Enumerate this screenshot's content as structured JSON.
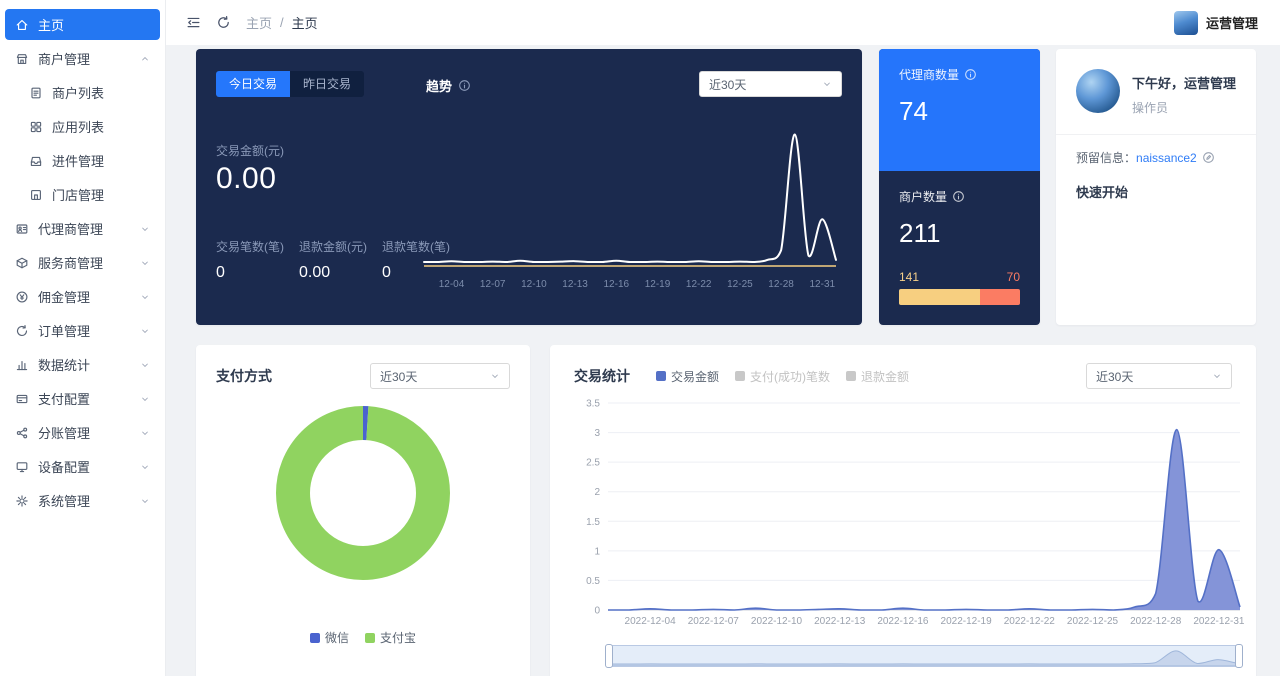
{
  "topbar": {
    "breadcrumb_root": "主页",
    "separator": "/",
    "breadcrumb_current": "主页",
    "user_name": "运营管理"
  },
  "sidebar": {
    "items": [
      {
        "key": "home",
        "label": "主页",
        "icon": "home-icon",
        "active": true
      },
      {
        "key": "merchant-mgmt",
        "label": "商户管理",
        "icon": "shop-icon",
        "collapsible": true,
        "expanded": true,
        "children": [
          {
            "key": "merchant-list",
            "label": "商户列表",
            "icon": "doc-icon"
          },
          {
            "key": "app-list",
            "label": "应用列表",
            "icon": "grid-icon"
          },
          {
            "key": "intake-mgmt",
            "label": "进件管理",
            "icon": "inbox-icon"
          },
          {
            "key": "store-mgmt",
            "label": "门店管理",
            "icon": "store-icon"
          }
        ]
      },
      {
        "key": "agent-mgmt",
        "label": "代理商管理",
        "icon": "agent-icon",
        "collapsible": true,
        "expanded": false
      },
      {
        "key": "service-provider-mgmt",
        "label": "服务商管理",
        "icon": "service-icon",
        "collapsible": true,
        "expanded": false
      },
      {
        "key": "commission-mgmt",
        "label": "佣金管理",
        "icon": "commission-icon",
        "collapsible": true,
        "expanded": false
      },
      {
        "key": "order-mgmt",
        "label": "订单管理",
        "icon": "order-icon",
        "collapsible": true,
        "expanded": false
      },
      {
        "key": "data-stats",
        "label": "数据统计",
        "icon": "stats-icon",
        "collapsible": true,
        "expanded": false
      },
      {
        "key": "payment-config",
        "label": "支付配置",
        "icon": "payment-icon",
        "collapsible": true,
        "expanded": false
      },
      {
        "key": "ledger-mgmt",
        "label": "分账管理",
        "icon": "split-icon",
        "collapsible": true,
        "expanded": false
      },
      {
        "key": "device-config",
        "label": "设备配置",
        "icon": "device-icon",
        "collapsible": true,
        "expanded": false
      },
      {
        "key": "system-mgmt",
        "label": "系统管理",
        "icon": "system-icon",
        "collapsible": true,
        "expanded": false
      }
    ]
  },
  "trend_card": {
    "tabs": [
      {
        "label": "今日交易",
        "active": true
      },
      {
        "label": "昨日交易",
        "active": false
      }
    ],
    "title": "趋势",
    "range_select": "近30天",
    "amount_label": "交易金额(元)",
    "amount_value": "0.00",
    "metrics": [
      {
        "label": "交易笔数(笔)",
        "value": "0"
      },
      {
        "label": "退款金额(元)",
        "value": "0.00"
      },
      {
        "label": "退款笔数(笔)",
        "value": "0"
      }
    ]
  },
  "stats_card": {
    "agent_label": "代理商数量",
    "agent_value": "74",
    "merchant_label": "商户数量",
    "merchant_value": "211",
    "bar": {
      "left_label": "141",
      "left_value": 141,
      "left_color": "#f7cf80",
      "right_label": "70",
      "right_value": 70,
      "right_color": "#fb7c63"
    }
  },
  "profile_card": {
    "greeting": "下午好，运营管理",
    "role": "操作员",
    "reserved_label": "预留信息：",
    "reserved_value": "naissance2",
    "quick_start": "快速开始"
  },
  "payment_card": {
    "title": "支付方式",
    "range_select": "近30天",
    "legend": [
      {
        "label": "微信",
        "color": "#4a63cf",
        "active": true
      },
      {
        "label": "支付宝",
        "color": "#90d360",
        "active": true
      }
    ]
  },
  "transaction_card": {
    "title": "交易统计",
    "range_select": "近30天",
    "legend": [
      {
        "label": "交易金额",
        "color": "#5470c6",
        "active": true
      },
      {
        "label": "支付(成功)笔数",
        "color": "#c8c8c8",
        "active": false
      },
      {
        "label": "退款金额",
        "color": "#c8c8c8",
        "active": false
      }
    ]
  },
  "chart_data": [
    {
      "id": "trend_line",
      "type": "line",
      "title": "趋势",
      "x": [
        "2022-12-02",
        "2022-12-03",
        "2022-12-04",
        "2022-12-05",
        "2022-12-06",
        "2022-12-07",
        "2022-12-08",
        "2022-12-09",
        "2022-12-10",
        "2022-12-11",
        "2022-12-12",
        "2022-12-13",
        "2022-12-14",
        "2022-12-15",
        "2022-12-16",
        "2022-12-17",
        "2022-12-18",
        "2022-12-19",
        "2022-12-20",
        "2022-12-21",
        "2022-12-22",
        "2022-12-23",
        "2022-12-24",
        "2022-12-25",
        "2022-12-26",
        "2022-12-27",
        "2022-12-28",
        "2022-12-29",
        "2022-12-30",
        "2022-12-31",
        "2023-01-01"
      ],
      "tick_idx": [
        2,
        5,
        8,
        11,
        14,
        17,
        20,
        23,
        26,
        29
      ],
      "tick_labels": [
        "12-04",
        "12-07",
        "12-10",
        "12-13",
        "12-16",
        "12-19",
        "12-22",
        "12-25",
        "12-28",
        "12-31"
      ],
      "ylim": [
        0,
        3.3
      ],
      "series": [
        {
          "name": "交易金额",
          "color": "#ffffff",
          "values": [
            0,
            0,
            0.02,
            0,
            0,
            0.01,
            0,
            0.03,
            0,
            0,
            0.01,
            0.02,
            0,
            0,
            0.03,
            0,
            0,
            0.01,
            0,
            0,
            0.02,
            0,
            0,
            0.01,
            0,
            0.05,
            0.28,
            3.05,
            0.15,
            1.02,
            0.05
          ]
        },
        {
          "name": "退款金额",
          "color": "#f7cf80",
          "values": [
            0,
            0,
            0,
            0,
            0,
            0,
            0,
            0,
            0,
            0,
            0,
            0,
            0,
            0,
            0,
            0,
            0,
            0,
            0,
            0,
            0,
            0,
            0,
            0,
            0,
            0,
            0,
            0,
            0,
            0,
            0
          ]
        }
      ]
    },
    {
      "id": "payment_pie",
      "type": "pie",
      "title": "支付方式",
      "labels": [
        "微信",
        "支付宝"
      ],
      "values": [
        1.0,
        99.0
      ],
      "colors": [
        "#4a63cf",
        "#90d360"
      ]
    },
    {
      "id": "transactions_area",
      "type": "area",
      "title": "交易统计",
      "x": [
        "2022-12-02",
        "2022-12-03",
        "2022-12-04",
        "2022-12-05",
        "2022-12-06",
        "2022-12-07",
        "2022-12-08",
        "2022-12-09",
        "2022-12-10",
        "2022-12-11",
        "2022-12-12",
        "2022-12-13",
        "2022-12-14",
        "2022-12-15",
        "2022-12-16",
        "2022-12-17",
        "2022-12-18",
        "2022-12-19",
        "2022-12-20",
        "2022-12-21",
        "2022-12-22",
        "2022-12-23",
        "2022-12-24",
        "2022-12-25",
        "2022-12-26",
        "2022-12-27",
        "2022-12-28",
        "2022-12-29",
        "2022-12-30",
        "2022-12-31",
        "2023-01-01"
      ],
      "tick_idx": [
        2,
        5,
        8,
        11,
        14,
        17,
        20,
        23,
        26,
        29
      ],
      "tick_labels": [
        "2022-12-04",
        "2022-12-07",
        "2022-12-10",
        "2022-12-13",
        "2022-12-16",
        "2022-12-19",
        "2022-12-22",
        "2022-12-25",
        "2022-12-28",
        "2022-12-31"
      ],
      "ylim": [
        0,
        3.5
      ],
      "yticks": [
        0,
        0.5,
        1,
        1.5,
        2,
        2.5,
        3,
        3.5
      ],
      "series": [
        {
          "name": "交易金额",
          "color": "#5470c6",
          "fill": "#8494d8",
          "values": [
            0,
            0,
            0.02,
            0,
            0,
            0.01,
            0,
            0.03,
            0,
            0,
            0.01,
            0.02,
            0,
            0,
            0.03,
            0,
            0,
            0.01,
            0,
            0,
            0.02,
            0,
            0,
            0.01,
            0,
            0.05,
            0.28,
            3.05,
            0.15,
            1.02,
            0.05
          ]
        }
      ]
    }
  ]
}
